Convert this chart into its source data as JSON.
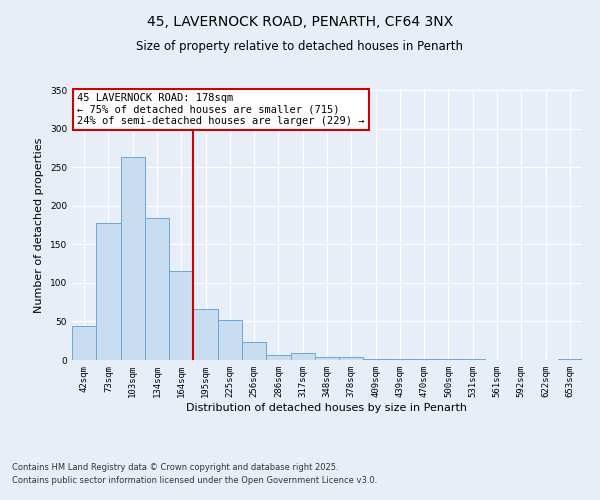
{
  "title": "45, LAVERNOCK ROAD, PENARTH, CF64 3NX",
  "subtitle": "Size of property relative to detached houses in Penarth",
  "bar_labels": [
    "42sqm",
    "73sqm",
    "103sqm",
    "134sqm",
    "164sqm",
    "195sqm",
    "225sqm",
    "256sqm",
    "286sqm",
    "317sqm",
    "348sqm",
    "378sqm",
    "409sqm",
    "439sqm",
    "470sqm",
    "500sqm",
    "531sqm",
    "561sqm",
    "592sqm",
    "622sqm",
    "653sqm"
  ],
  "bar_values": [
    44,
    177,
    263,
    184,
    116,
    66,
    52,
    23,
    7,
    9,
    4,
    4,
    1,
    1,
    1,
    1,
    1,
    0,
    0,
    0,
    1
  ],
  "bar_color": "#c8ddf0",
  "bar_edge_color": "#6aaad4",
  "bar_width": 1.0,
  "ylim": [
    0,
    350
  ],
  "yticks": [
    0,
    50,
    100,
    150,
    200,
    250,
    300,
    350
  ],
  "ylabel": "Number of detached properties",
  "xlabel": "Distribution of detached houses by size in Penarth",
  "vline_x_idx": 4,
  "vline_color": "#cc0000",
  "annotation_title": "45 LAVERNOCK ROAD: 178sqm",
  "annotation_line1": "← 75% of detached houses are smaller (715)",
  "annotation_line2": "24% of semi-detached houses are larger (229) →",
  "annotation_box_facecolor": "#ffffff",
  "annotation_box_edgecolor": "#cc0000",
  "footnote1": "Contains HM Land Registry data © Crown copyright and database right 2025.",
  "footnote2": "Contains public sector information licensed under the Open Government Licence v3.0.",
  "bg_color": "#e8eef8",
  "grid_color": "#ffffff",
  "title_fontsize": 10,
  "subtitle_fontsize": 8.5,
  "axis_label_fontsize": 8,
  "tick_fontsize": 6.5,
  "annotation_fontsize": 7.5,
  "footnote_fontsize": 6
}
